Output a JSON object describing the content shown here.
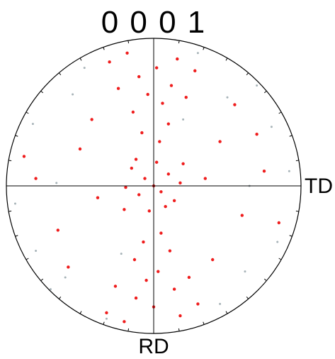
{
  "chart_data": {
    "type": "scatter",
    "subtype": "pole-figure",
    "title": "0 0 0 1",
    "axis_labels": {
      "right": "TD",
      "bottom": "RD"
    },
    "plane": "0001",
    "projection": "stereographic",
    "x_range": [
      -1,
      1
    ],
    "y_range": [
      -1,
      1
    ],
    "grid": false,
    "legend": "none",
    "tick_angles_deg": [
      0,
      10,
      20,
      30,
      40,
      50,
      60,
      70,
      80,
      90,
      100,
      110,
      120,
      130,
      140,
      150,
      160,
      170,
      180,
      190,
      200,
      210,
      220,
      230,
      240,
      250,
      260,
      270,
      280,
      290,
      300,
      310,
      320,
      330,
      340,
      350
    ],
    "series": [
      {
        "color": "#ee1111",
        "points": [
          [
            0.0,
            0.0
          ],
          [
            -0.06,
            0.05
          ],
          [
            0.05,
            -0.04
          ],
          [
            0.1,
            0.08
          ],
          [
            -0.1,
            -0.06
          ],
          [
            0.14,
            -0.1
          ],
          [
            -0.15,
            0.12
          ],
          [
            0.02,
            0.16
          ],
          [
            -0.03,
            -0.17
          ],
          [
            0.18,
            0.02
          ],
          [
            -0.19,
            -0.01
          ],
          [
            0.08,
            -0.14
          ],
          [
            -0.12,
            0.18
          ],
          [
            0.2,
            0.15
          ],
          [
            -0.2,
            -0.16
          ],
          [
            0.04,
            0.3
          ],
          [
            -0.08,
            0.36
          ],
          [
            0.1,
            0.42
          ],
          [
            -0.14,
            0.5
          ],
          [
            0.06,
            0.56
          ],
          [
            -0.04,
            0.62
          ],
          [
            0.12,
            0.68
          ],
          [
            -0.1,
            0.74
          ],
          [
            0.02,
            0.8
          ],
          [
            0.16,
            0.86
          ],
          [
            -0.18,
            0.9
          ],
          [
            0.22,
            0.6
          ],
          [
            -0.24,
            0.66
          ],
          [
            0.28,
            0.78
          ],
          [
            -0.3,
            0.84
          ],
          [
            0.05,
            -0.32
          ],
          [
            -0.07,
            -0.38
          ],
          [
            0.11,
            -0.44
          ],
          [
            -0.13,
            -0.5
          ],
          [
            0.03,
            -0.58
          ],
          [
            -0.05,
            -0.64
          ],
          [
            0.14,
            -0.7
          ],
          [
            -0.12,
            -0.76
          ],
          [
            0.0,
            -0.82
          ],
          [
            0.18,
            -0.88
          ],
          [
            -0.2,
            -0.92
          ],
          [
            0.24,
            -0.62
          ],
          [
            -0.26,
            -0.68
          ],
          [
            0.3,
            -0.8
          ],
          [
            -0.32,
            -0.86
          ],
          [
            0.45,
            0.3
          ],
          [
            -0.5,
            0.25
          ],
          [
            0.6,
            -0.2
          ],
          [
            -0.65,
            -0.3
          ],
          [
            0.75,
            0.1
          ],
          [
            -0.8,
            0.05
          ],
          [
            0.4,
            -0.5
          ],
          [
            -0.42,
            0.45
          ],
          [
            0.55,
            0.55
          ],
          [
            -0.58,
            -0.55
          ],
          [
            0.85,
            -0.25
          ],
          [
            -0.88,
            0.2
          ],
          [
            0.35,
            0.05
          ],
          [
            -0.38,
            -0.08
          ],
          [
            0.7,
            0.35
          ]
        ]
      },
      {
        "color": "#8a9aa0",
        "points": [
          [
            0.5,
            0.6
          ],
          [
            -0.55,
            0.62
          ],
          [
            0.62,
            -0.58
          ],
          [
            -0.6,
            -0.62
          ],
          [
            0.8,
            0.4
          ],
          [
            -0.82,
            0.42
          ],
          [
            0.84,
            -0.38
          ],
          [
            -0.8,
            -0.44
          ],
          [
            0.3,
            0.9
          ],
          [
            -0.32,
            -0.9
          ],
          [
            0.92,
            0.1
          ],
          [
            -0.94,
            -0.12
          ],
          [
            0.45,
            -0.8
          ],
          [
            -0.47,
            0.8
          ],
          [
            0.7,
            0.68
          ],
          [
            -0.7,
            -0.7
          ],
          [
            0.2,
            0.45
          ],
          [
            -0.22,
            -0.46
          ],
          [
            0.65,
            0.0
          ],
          [
            -0.66,
            0.02
          ]
        ]
      }
    ]
  }
}
